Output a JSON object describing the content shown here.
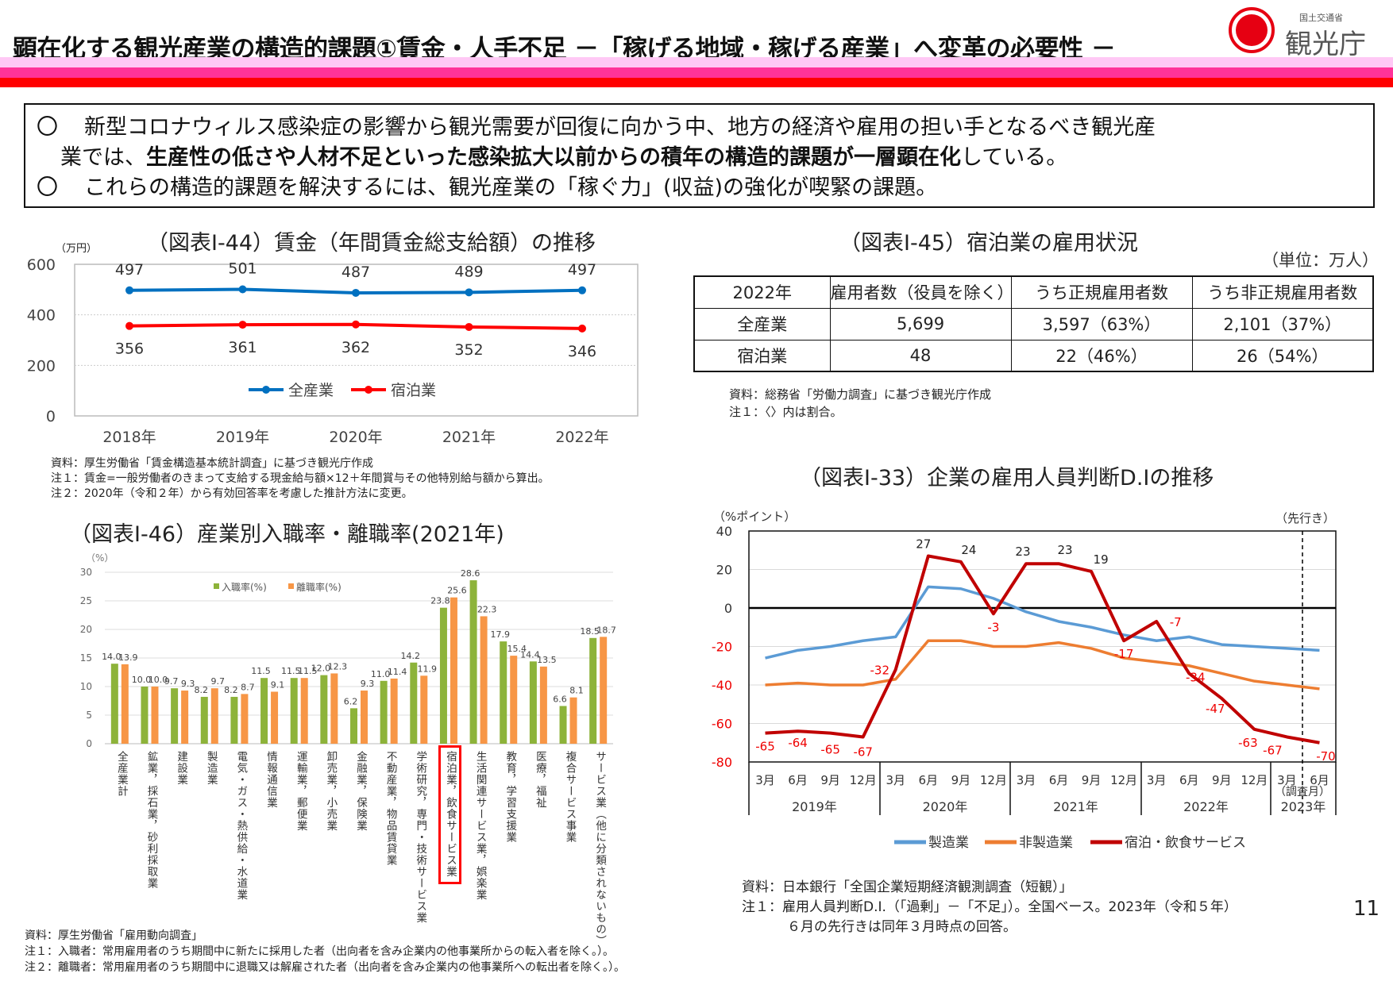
{
  "header": {
    "title": "顕在化する観光産業の構造的課題①賃金・人手不足 －「稼げる地域・稼げる産業」へ変革の必要性 －",
    "logo": {
      "ministry": "国土交通省",
      "agency": "観光庁"
    },
    "band_colors": [
      "#ffc8f5",
      "#ff3399",
      "#ff0000"
    ]
  },
  "summary": {
    "bullet": "〇",
    "line1": "新型コロナウィルス感染症の影響から観光需要が回復に向かう中、地方の経済や雇用の担い手となるべき観光産",
    "line2_pre": "業では、",
    "line2_bold": "生産性の低さや人材不足といった感染拡大以前からの積年の構造的課題が一層顕在化",
    "line2_post": "している。",
    "line3": "これらの構造的課題を解決するには、観光産業の「稼ぐ力」(収益)の強化が喫緊の課題。"
  },
  "wage": {
    "notes": [
      "資料：厚生労働省「賃金構造基本統計調査」に基づき観光庁作成",
      "注１：賃金=一般労働者のきまって支給する現金給与額×12＋年間賞与その他特別給与額から算出。",
      "注２：2020年（令和２年）から有効回答率を考慮した推計方法に変更。"
    ]
  },
  "table": {
    "title": "（図表Ⅰ-45）宿泊業の雇用状況",
    "unit": "（単位：万人）",
    "headers": [
      "2022年",
      "雇用者数（役員を除く）",
      "うち正規雇用者数",
      "うち非正規雇用者数"
    ],
    "rows": [
      [
        "全産業",
        "5,699",
        "3,597（63%）",
        "2,101（37%）"
      ],
      [
        "宿泊業",
        "48",
        "22（46%）",
        "26（54%）"
      ]
    ],
    "notes": [
      "資料：総務省「労働力調査」に基づき観光庁作成",
      "注１：〈〉内は割合。"
    ]
  },
  "bars": {
    "notes": [
      "資料：厚生労働省「雇用動向調査」",
      "注１：入職者：常用雇用者のうち期間中に新たに採用した者（出向者を含み企業内の他事業所からの転入者を除く。）。",
      "注２：離職者：常用雇用者のうち期間中に退職又は解雇された者（出向者を含み企業内の他事業所への転出者を除く。）。"
    ],
    "highlight": "宿泊業，飲食サービス業"
  },
  "di": {
    "notes": [
      "資料：日本銀行「全国企業短期経済観測調査（短観）」",
      "注１：雇用人員判断D.I.（「過剰」－「不足」）。全国ベース。2023年（令和５年）",
      "６月の先行きは同年３月時点の回答。"
    ]
  },
  "page_number": "11",
  "chart_data": [
    {
      "type": "line",
      "title": "（図表Ⅰ-44）賃金（年間賃金総支給額）の推移",
      "ylabel": "（万円）",
      "xlabel": "",
      "categories": [
        "2018年",
        "2019年",
        "2020年",
        "2021年",
        "2022年"
      ],
      "ylim": [
        0,
        600
      ],
      "yticks": [
        "0",
        "200",
        "400",
        "600"
      ],
      "grid": true,
      "legend": "bottom-center",
      "series": [
        {
          "name": "全産業",
          "color": "#0070c0",
          "values": [
            497,
            501,
            487,
            489,
            497
          ]
        },
        {
          "name": "宿泊業",
          "color": "#ff0000",
          "values": [
            356,
            361,
            362,
            352,
            346
          ]
        }
      ]
    },
    {
      "type": "bar",
      "title": "（図表Ⅰ-46）産業別入職率・離職率(2021年)",
      "ylabel": "（%）",
      "ylim": [
        0,
        30
      ],
      "yticks": [
        "0",
        "5",
        "10",
        "15",
        "20",
        "25",
        "30"
      ],
      "grid": true,
      "legend": "top-left",
      "categories": [
        "全産業計",
        "鉱業，採石業，砂利採取業",
        "建設業",
        "製造業",
        "電気・ガス・熱供給・水道業",
        "情報通信業",
        "運輸業，郵便業",
        "卸売業，小売業",
        "金融業，保険業",
        "不動産業，物品賃貸業",
        "学術研究，専門・技術サービス業",
        "宿泊業，飲食サービス業",
        "生活関連サービス業，娯楽業",
        "教育，学習支援業",
        "医療，福祉",
        "複合サービス事業",
        "サービス業（他に分類されないもの）"
      ],
      "series": [
        {
          "name": "入職率(%)",
          "color": "#8db33a",
          "values": [
            14.0,
            10.0,
            9.7,
            8.2,
            8.2,
            11.5,
            11.5,
            12.0,
            6.2,
            11.0,
            14.2,
            23.8,
            28.6,
            17.9,
            14.4,
            6.6,
            18.5
          ]
        },
        {
          "name": "離職率(%)",
          "color": "#f79646",
          "values": [
            13.9,
            10.0,
            9.3,
            9.7,
            8.7,
            9.1,
            11.5,
            12.3,
            9.3,
            11.4,
            11.9,
            25.6,
            22.3,
            15.4,
            13.5,
            8.1,
            18.7
          ]
        }
      ]
    },
    {
      "type": "line",
      "title": "（図表Ⅰ-33）企業の雇用人員判断D.Iの推移",
      "ylabel": "（%ポイント）",
      "forecast_label": "（先行き）",
      "ylim": [
        -80,
        40
      ],
      "yticks": [
        "40",
        "20",
        "0",
        "-20",
        "-40",
        "-60",
        "-80"
      ],
      "grid": true,
      "legend": "bottom-center",
      "x": [
        "3月",
        "6月",
        "9月",
        "12月",
        "3月",
        "6月",
        "9月",
        "12月",
        "3月",
        "6月",
        "9月",
        "12月",
        "3月",
        "6月",
        "9月",
        "12月",
        "3月",
        "6月"
      ],
      "survey_month_label": "（調査月）",
      "years": [
        "2019年",
        "2020年",
        "2021年",
        "2022年",
        "2023年"
      ],
      "series": [
        {
          "name": "製造業",
          "color": "#5b9bd5",
          "values": [
            -26,
            -22,
            -20,
            -17,
            -15,
            11,
            10,
            5,
            -2,
            -7,
            -10,
            -14,
            -17,
            -15,
            -19,
            -20,
            -21,
            -22
          ]
        },
        {
          "name": "非製造業",
          "color": "#ed7d31",
          "values": [
            -40,
            -39,
            -40,
            -40,
            -37,
            -17,
            -17,
            -20,
            -20,
            -18,
            -21,
            -26,
            -28,
            -30,
            -34,
            -38,
            -40,
            -42
          ]
        },
        {
          "name": "宿泊・飲食サービス",
          "color": "#c00000",
          "values": [
            -65,
            -64,
            -65,
            -67,
            -32,
            27,
            24,
            -3,
            23,
            23,
            19,
            -17,
            -7,
            -34,
            -47,
            -63,
            -67,
            -70
          ]
        }
      ]
    }
  ]
}
